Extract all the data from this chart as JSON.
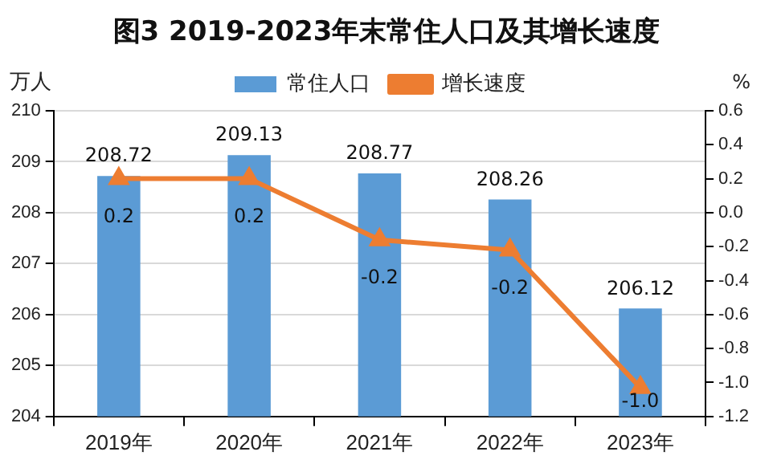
{
  "chart_data": {
    "type": "bar",
    "title": "图3 2019-2023年末常住人口及其增长速度",
    "ylabel": "万人",
    "y2label": "%",
    "categories": [
      "2019年",
      "2020年",
      "2021年",
      "2022年",
      "2023年"
    ],
    "series": [
      {
        "name": "常住人口",
        "color": "#5b9bd5",
        "values": [
          208.72,
          209.13,
          208.77,
          208.26,
          206.12
        ],
        "value_labels": [
          "208.72",
          "209.13",
          "208.77",
          "208.26",
          "206.12"
        ]
      },
      {
        "name": "增长速度",
        "type": "line",
        "axis": "y2",
        "color": "#ed7d31",
        "marker": "triangle",
        "values": [
          0.2,
          0.2,
          -0.16,
          -0.22,
          -1.03
        ],
        "value_labels": [
          "0.2",
          "0.2",
          "-0.2",
          "-0.2",
          "-1.0"
        ]
      }
    ],
    "ylim": [
      204,
      210
    ],
    "yticks": [
      204,
      205,
      206,
      207,
      208,
      209,
      210
    ],
    "y2lim": [
      -1.2,
      0.6
    ],
    "y2ticks": [
      {
        "value": -1.2,
        "label": "-1.2"
      },
      {
        "value": -1,
        "label": "-1.0"
      },
      -0.8,
      -0.6,
      -0.4,
      -0.2,
      {
        "value": 0,
        "label": "0.0"
      },
      0.2,
      0.4,
      0.6
    ],
    "grid": "y",
    "legend": "top"
  }
}
